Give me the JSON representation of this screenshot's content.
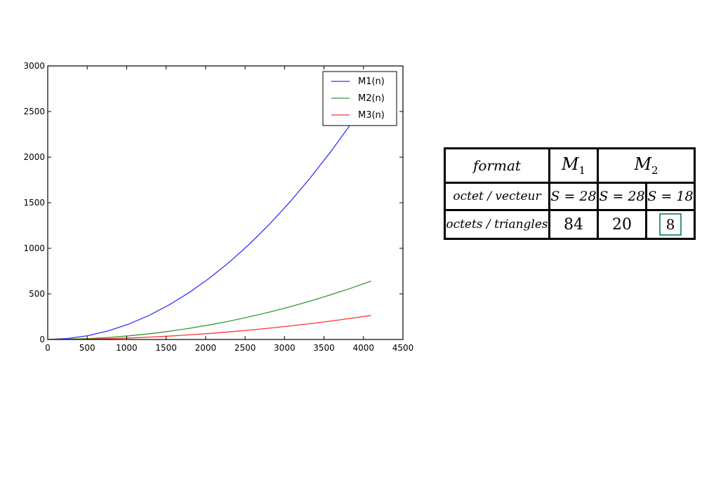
{
  "chart_data": {
    "type": "line",
    "title": "",
    "xlabel": "",
    "ylabel": "",
    "xlim": [
      0,
      4500
    ],
    "ylim": [
      0,
      3000
    ],
    "xticks": [
      0,
      500,
      1000,
      1500,
      2000,
      2500,
      3000,
      3500,
      4000,
      4500
    ],
    "yticks": [
      0,
      500,
      1000,
      1500,
      2000,
      2500,
      3000
    ],
    "grid": false,
    "legend": "top-right",
    "x": [
      0,
      256,
      512,
      768,
      1024,
      1280,
      1536,
      1792,
      2048,
      2304,
      2560,
      2816,
      3072,
      3328,
      3584,
      3840,
      4096
    ],
    "series": [
      {
        "name": "M1(n)",
        "color": "#3333ff",
        "values": [
          0,
          11,
          42,
          95,
          168,
          263,
          378,
          515,
          672,
          851,
          1050,
          1271,
          1512,
          1775,
          2058,
          2363,
          2688
        ]
      },
      {
        "name": "M2(n)",
        "color": "#339933",
        "values": [
          0,
          3,
          10,
          22,
          40,
          62,
          90,
          122,
          160,
          202,
          250,
          302,
          360,
          422,
          490,
          562,
          640
        ]
      },
      {
        "name": "M3(n)",
        "color": "#ff3333",
        "values": [
          0,
          1,
          4,
          9,
          16,
          26,
          37,
          51,
          66,
          84,
          103,
          125,
          149,
          174,
          202,
          232,
          264
        ]
      }
    ]
  },
  "table": {
    "header": {
      "label": "format",
      "m1": "M",
      "m1_sub": "1",
      "m2": "M",
      "m2_sub": "2"
    },
    "row_vector": {
      "label": "octet / vecteur",
      "values": [
        "S = 28",
        "S = 28",
        "S = 18"
      ]
    },
    "row_triangle": {
      "label": "octets / triangles",
      "values": [
        "84",
        "20",
        "8"
      ]
    },
    "highlight_color": "#3a9a6a"
  }
}
